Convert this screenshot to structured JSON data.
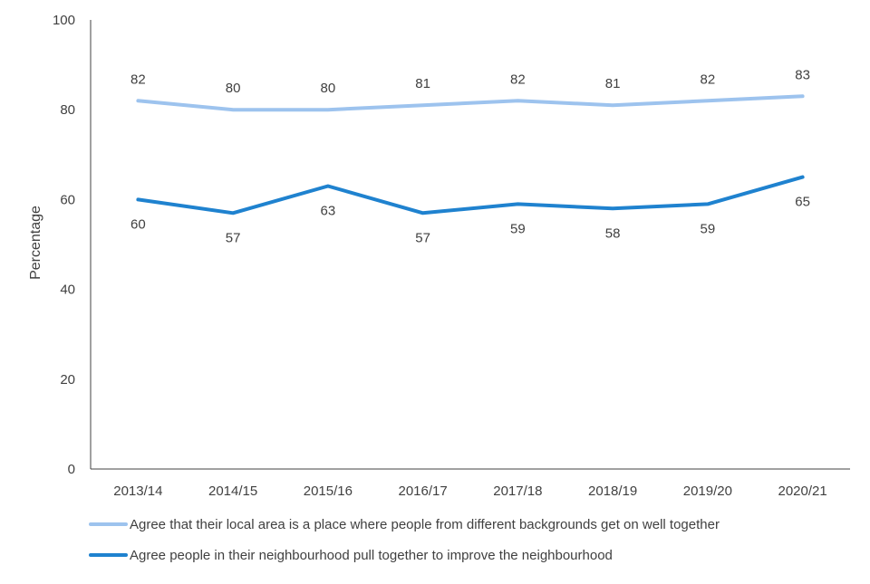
{
  "chart_data": {
    "type": "line",
    "categories": [
      "2013/14",
      "2014/15",
      "2015/16",
      "2016/17",
      "2017/18",
      "2018/19",
      "2019/20",
      "2020/21"
    ],
    "series": [
      {
        "name": "Agree that their local area is a place where people from different backgrounds get on well together",
        "values": [
          82,
          80,
          80,
          81,
          82,
          81,
          82,
          83
        ],
        "color": "#9DC3EE"
      },
      {
        "name": "Agree people in their neighbourhood pull together to improve the neighbourhood",
        "values": [
          60,
          57,
          63,
          57,
          59,
          58,
          59,
          65
        ],
        "color": "#1F82CF"
      }
    ],
    "title": "",
    "xlabel": "",
    "ylabel": "Percentage",
    "ylim": [
      0,
      100
    ],
    "yticks": [
      0,
      20,
      40,
      60,
      80,
      100
    ],
    "grid": false,
    "legend_position": "bottom"
  }
}
